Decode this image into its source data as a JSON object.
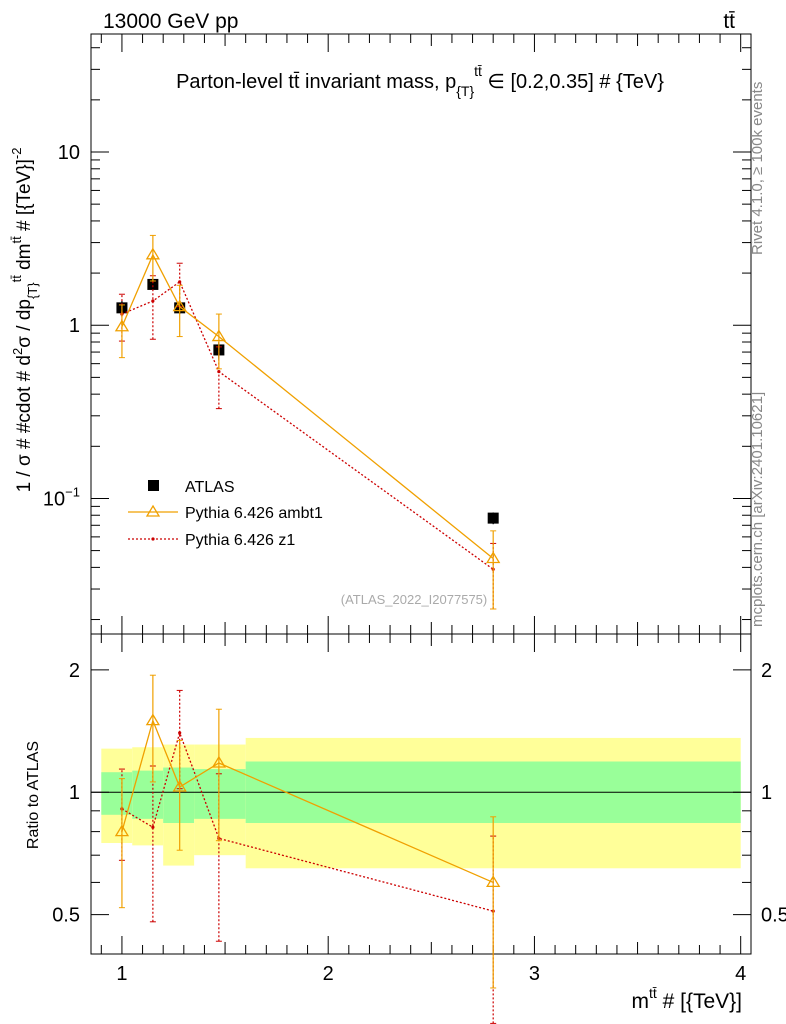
{
  "header": {
    "left": "13000 GeV pp",
    "right": "tt̄"
  },
  "side_labels": {
    "rivet": "Rivet 4.1.0, ≥ 100k events",
    "mcplots": "mcplots.cern.ch [arXiv:2401.10621]"
  },
  "watermark": "(ATLAS_2022_I2077575)",
  "colors": {
    "atlas": "#000000",
    "ambt1": "#f0a000",
    "z1": "#cc0000",
    "band_inner": "#99ff99",
    "band_outer": "#ffff99"
  },
  "chart_data": [
    {
      "type": "scatter",
      "panel": "main",
      "title": "Parton-level tt̄ invariant mass, p_{T}^{tt̄} ∈ [0.2,0.35] # {TeV}",
      "title_parts": {
        "pre": "Parton-level tt̄ invariant mass, p",
        "sub": "{T}",
        "sup": "tt̄",
        "post": " ∈ [0.2,0.35] # {TeV}"
      },
      "ylabel": "1 / σ # #cdot # d²σ / dp_{T}^{tt̄} dm^{tt̄} # [{TeV}]^{-2}",
      "ylabel_parts": {
        "a": "1 / σ # #cdot # d",
        "b": "2",
        "c": "σ / dp",
        "d": "{T}",
        "e": "tt̄",
        "f": " dm",
        "g": "tt̄",
        "h": " # [{TeV}]",
        "i": "-2"
      },
      "yscale": "log",
      "ylim": [
        0.0165,
        48
      ],
      "xlim": [
        0.85,
        4.05
      ],
      "yticks": [
        {
          "value": 0.1,
          "base": "10",
          "exp": "−1"
        },
        {
          "value": 1,
          "base": "1",
          "exp": ""
        },
        {
          "value": 10,
          "base": "10",
          "exp": ""
        }
      ],
      "legend_position": "center-left",
      "series": [
        {
          "name": "ATLAS",
          "x": [
            1.0,
            1.15,
            1.28,
            1.47,
            2.8
          ],
          "xerr": [
            [
              0.1,
              0.05,
              0.05,
              0.07,
              0.1
            ],
            [
              0.05,
              0.05,
              0.07,
              0.13,
              0.1
            ]
          ],
          "y": [
            1.26,
            1.72,
            1.26,
            0.72,
            0.077
          ],
          "yerr_low": [
            0.12,
            0.12,
            0.1,
            0.08,
            0.006
          ],
          "yerr_high": [
            0.12,
            0.12,
            0.1,
            0.08,
            0.006
          ]
        },
        {
          "name": "Pythia 6.426 ambt1",
          "x": [
            1.0,
            1.15,
            1.28,
            1.47,
            2.8
          ],
          "y": [
            0.98,
            2.55,
            1.28,
            0.86,
            0.045
          ],
          "yerr_low": [
            0.33,
            0.75,
            0.42,
            0.3,
            0.022
          ],
          "yerr_high": [
            0.33,
            0.75,
            0.42,
            0.3,
            0.02
          ]
        },
        {
          "name": "Pythia 6.426 z1",
          "x": [
            1.0,
            1.15,
            1.28,
            1.47,
            2.8
          ],
          "y": [
            1.16,
            1.38,
            1.78,
            0.54,
            0.039
          ],
          "yerr_low": [
            0.35,
            0.55,
            0.5,
            0.21,
            0.016
          ],
          "yerr_high": [
            0.35,
            0.55,
            0.5,
            0.21,
            0.016
          ]
        }
      ]
    },
    {
      "type": "line",
      "panel": "ratio",
      "ylabel": "Ratio to ATLAS",
      "xlabel": "m^{tt̄} # [{TeV}]",
      "xlabel_parts": {
        "a": "m",
        "b": "tt̄",
        "c": " # [{TeV}]"
      },
      "yscale": "log",
      "ylim": [
        0.4,
        2.45
      ],
      "xlim": [
        0.85,
        4.05
      ],
      "yticks": [
        0.5,
        1,
        2
      ],
      "ytick_labels": [
        "0.5",
        "1",
        "2"
      ],
      "xticks": [
        1,
        2,
        3,
        4
      ],
      "xtick_labels": [
        "1",
        "2",
        "3",
        "4"
      ],
      "reference_line": 1,
      "bands": [
        {
          "x_lo": 0.9,
          "x_hi": 1.05,
          "inner": [
            0.88,
            1.12
          ],
          "outer": [
            0.75,
            1.28
          ]
        },
        {
          "x_lo": 1.05,
          "x_hi": 1.2,
          "inner": [
            0.86,
            1.13
          ],
          "outer": [
            0.74,
            1.29
          ]
        },
        {
          "x_lo": 1.2,
          "x_hi": 1.35,
          "inner": [
            0.84,
            1.15
          ],
          "outer": [
            0.66,
            1.31
          ]
        },
        {
          "x_lo": 1.35,
          "x_hi": 1.6,
          "inner": [
            0.86,
            1.14
          ],
          "outer": [
            0.7,
            1.31
          ]
        },
        {
          "x_lo": 1.6,
          "x_hi": 4.0,
          "inner": [
            0.84,
            1.19
          ],
          "outer": [
            0.65,
            1.36
          ]
        }
      ],
      "series": [
        {
          "name": "Pythia 6.426 ambt1",
          "x": [
            1.0,
            1.15,
            1.28,
            1.47,
            2.8
          ],
          "y": [
            0.8,
            1.5,
            1.03,
            1.18,
            0.6
          ],
          "yerr_low": [
            0.28,
            0.44,
            0.31,
            0.42,
            0.27
          ],
          "yerr_high": [
            0.28,
            0.44,
            0.31,
            0.42,
            0.27
          ]
        },
        {
          "name": "Pythia 6.426 z1",
          "x": [
            1.0,
            1.15,
            1.28,
            1.47,
            2.8
          ],
          "y": [
            0.91,
            0.82,
            1.4,
            0.77,
            0.51
          ],
          "yerr_low": [
            0.23,
            0.34,
            0.38,
            0.34,
            0.24
          ],
          "yerr_high": [
            0.23,
            0.34,
            0.38,
            0.34,
            0.27
          ]
        }
      ]
    }
  ]
}
